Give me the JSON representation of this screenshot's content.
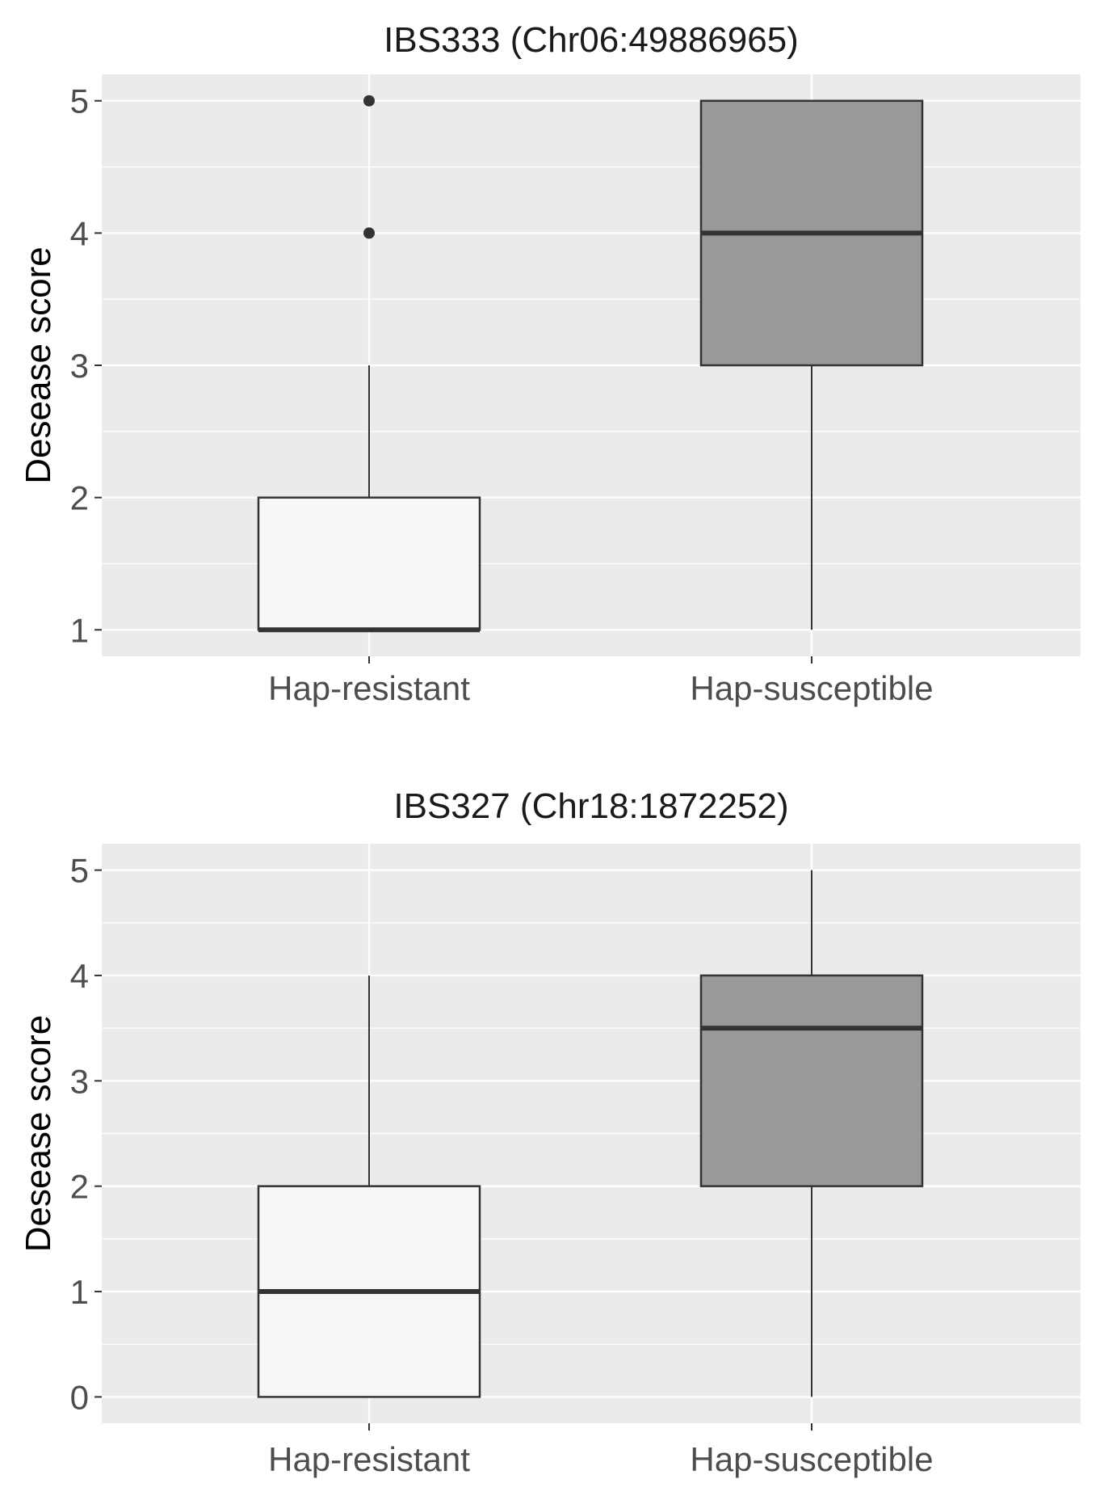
{
  "chart_data": [
    {
      "type": "box",
      "title": "IBS333 (Chr06:49886965)",
      "xlabel": "",
      "ylabel": "Desease score",
      "categories": [
        "Hap-resistant",
        "Hap-susceptible"
      ],
      "ylim": [
        0.8,
        5.2
      ],
      "yticks": [
        1,
        2,
        3,
        4,
        5
      ],
      "grid": true,
      "boxes": [
        {
          "category": "Hap-resistant",
          "min": 1,
          "q1": 1,
          "median": 1,
          "q3": 2,
          "max": 3,
          "outliers": [
            4,
            5
          ],
          "fill": "#f7f7f7"
        },
        {
          "category": "Hap-susceptible",
          "min": 1,
          "q1": 3,
          "median": 4,
          "q3": 5,
          "max": 5,
          "outliers": [],
          "fill": "#999999"
        }
      ]
    },
    {
      "type": "box",
      "title": "IBS327 (Chr18:1872252)",
      "xlabel": "",
      "ylabel": "Desease score",
      "categories": [
        "Hap-resistant",
        "Hap-susceptible"
      ],
      "ylim": [
        -0.25,
        5.25
      ],
      "yticks": [
        0,
        1,
        2,
        3,
        4,
        5
      ],
      "grid": true,
      "boxes": [
        {
          "category": "Hap-resistant",
          "min": 0,
          "q1": 0,
          "median": 1,
          "q3": 2,
          "max": 4,
          "outliers": [],
          "fill": "#f7f7f7"
        },
        {
          "category": "Hap-susceptible",
          "min": 0,
          "q1": 2,
          "median": 3.5,
          "q3": 4,
          "max": 5,
          "outliers": [],
          "fill": "#999999"
        }
      ]
    }
  ],
  "colors": {
    "panel_background": "#ebebeb",
    "gridline": "#ffffff",
    "box_outline": "#333333",
    "tick_text": "#4d4d4d"
  }
}
